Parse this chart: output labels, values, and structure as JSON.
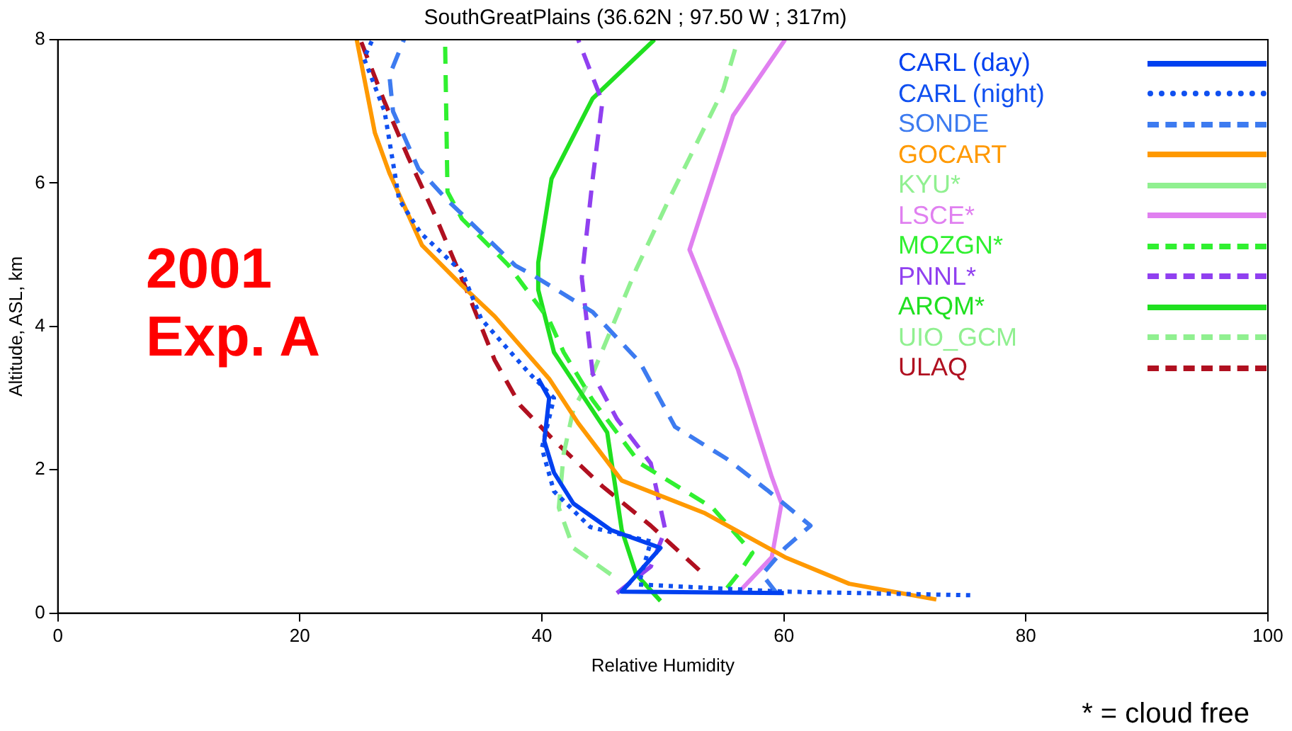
{
  "chart_data": {
    "type": "line",
    "title": "SouthGreatPlains (36.62N ; 97.50 W ; 317m)",
    "xlabel": "Relative Humidity",
    "ylabel": "Altitude, ASL, km",
    "xlim": [
      0,
      100
    ],
    "xticks": [
      0,
      20,
      40,
      60,
      80,
      100
    ],
    "ylim": [
      0,
      8
    ],
    "yticks": [
      0,
      2,
      4,
      6,
      8
    ],
    "grid": false,
    "legend": "top right",
    "marker": "none",
    "annotations": [
      "2001",
      "Exp. A",
      "* = cloud free"
    ],
    "series": [
      {
        "name": "CARL (day)",
        "color": "#0040f0",
        "line_style": "solid",
        "x": [
          60,
          46.6,
          49.8,
          45.7,
          42.6,
          41,
          40.2,
          40.6,
          39.7
        ],
        "values": [
          0.28,
          0.3,
          0.91,
          1.16,
          1.53,
          1.96,
          2.4,
          3.0,
          3.27
        ]
      },
      {
        "name": "CARL (night)",
        "color": "#1050f0",
        "line_style": "dotted",
        "x": [
          75.4,
          60,
          48,
          49,
          44,
          41,
          40,
          41,
          39,
          35,
          33.4,
          30,
          28.2,
          27,
          25.3,
          26
        ],
        "values": [
          0.25,
          0.3,
          0.4,
          1.0,
          1.2,
          1.7,
          2.3,
          3.0,
          3.34,
          4.1,
          4.76,
          5.3,
          5.77,
          7.0,
          7.74,
          8
        ]
      },
      {
        "name": "SONDE",
        "color": "#3d7bf0",
        "line_style": "dashed",
        "x": [
          59.4,
          58.2,
          60.1,
          62.2,
          58.6,
          55.3,
          51,
          48.1,
          44.2,
          39.4,
          37.8,
          32.2,
          29.8,
          27.7,
          27.4,
          28.6
        ],
        "values": [
          0.28,
          0.54,
          0.91,
          1.22,
          1.72,
          2.15,
          2.6,
          3.5,
          4.2,
          4.7,
          4.85,
          5.76,
          6.2,
          7.0,
          7.5,
          8
        ]
      },
      {
        "name": "GOCART",
        "color": "#ff9900",
        "line_style": "solid",
        "x": [
          72.6,
          65.4,
          60.1,
          53.4,
          46.6,
          43,
          40.6,
          36.1,
          33.4,
          30.1,
          27.4,
          26.2,
          24.7
        ],
        "values": [
          0.19,
          0.41,
          0.78,
          1.4,
          1.85,
          2.65,
          3.27,
          4.14,
          4.57,
          5.13,
          6.14,
          6.7,
          8
        ]
      },
      {
        "name": "KYU*",
        "color": "#90f090",
        "line_style": "solid"
      },
      {
        "name": "LSCE*",
        "color": "#e080f0",
        "line_style": "solid",
        "x": [
          56.2,
          59,
          59.8,
          59,
          56.2,
          52.2,
          55.8,
          60.1
        ],
        "values": [
          0.28,
          0.78,
          1.53,
          1.9,
          3.4,
          5.07,
          6.94,
          8
        ]
      },
      {
        "name": "MOZGN*",
        "color": "#30f030",
        "line_style": "dashed",
        "x": [
          55.3,
          56.2,
          57.4,
          54.1,
          48.1,
          44.2,
          41.8,
          40.6,
          37.2,
          33.4,
          32.2,
          32
        ],
        "values": [
          0.35,
          0.54,
          0.84,
          1.47,
          2.09,
          2.97,
          3.64,
          4.09,
          4.86,
          5.5,
          5.88,
          8
        ]
      },
      {
        "name": "PNNL*",
        "color": "#9040f0",
        "line_style": "dashed",
        "x": [
          46.2,
          49,
          50.2,
          49,
          46.2,
          44.2,
          43.3,
          44.2,
          45,
          43
        ],
        "values": [
          0.28,
          0.65,
          1.16,
          2.09,
          2.71,
          3.34,
          4.68,
          6.06,
          7.13,
          8
        ]
      },
      {
        "name": "ARQM*",
        "color": "#20e020",
        "line_style": "solid",
        "x": [
          49.8,
          47.8,
          46.6,
          45.4,
          41,
          39.7,
          39.7,
          40.8,
          44.2,
          49.3
        ],
        "values": [
          0.17,
          0.54,
          1.16,
          2.52,
          3.64,
          4.51,
          4.89,
          6.06,
          7.18,
          8
        ]
      },
      {
        "name": "UIO_GCM",
        "color": "#90f090",
        "line_style": "dashed",
        "x": [
          45.7,
          42.6,
          41.4,
          41.8,
          42.6,
          44.2,
          47.8,
          50.5,
          55,
          56.2
        ],
        "values": [
          0.54,
          0.91,
          1.47,
          2.22,
          2.84,
          3.34,
          4.8,
          5.77,
          7.31,
          8
        ]
      },
      {
        "name": "ULAQ",
        "color": "#b01020",
        "line_style": "dashed",
        "x": [
          53,
          49,
          45,
          41,
          38.2,
          36.1,
          33.7,
          31.3,
          28.9,
          27,
          25
        ],
        "values": [
          0.6,
          1.22,
          1.77,
          2.41,
          2.9,
          3.53,
          4.54,
          5.5,
          6.38,
          7.13,
          8
        ]
      }
    ]
  }
}
